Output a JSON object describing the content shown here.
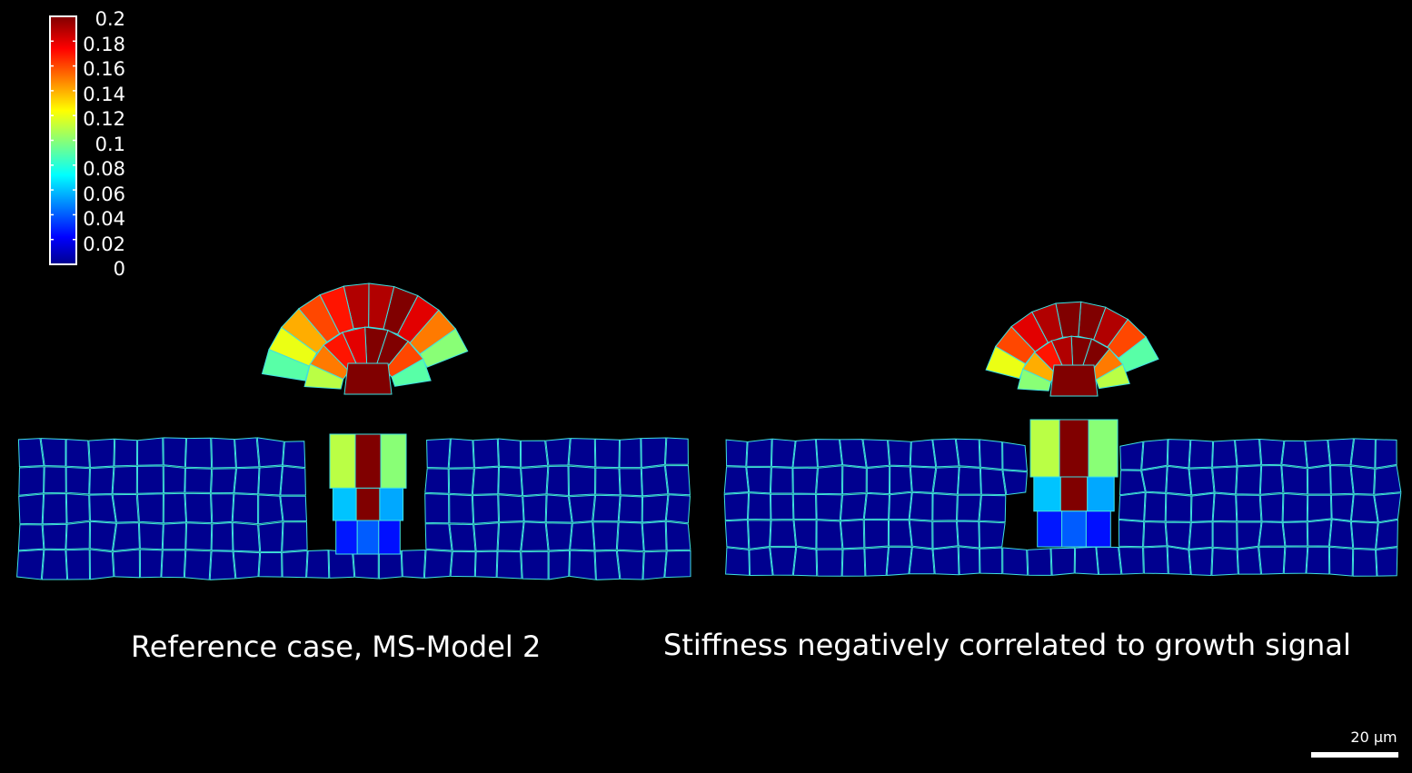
{
  "colorbar": {
    "ticks": [
      "0.2",
      "0.18",
      "0.16",
      "0.14",
      "0.12",
      "0.1",
      "0.08",
      "0.06",
      "0.04",
      "0.02",
      "0"
    ],
    "min": 0,
    "max": 0.2,
    "colormap": "jet"
  },
  "panels": [
    {
      "caption": "Reference case, MS-Model 2"
    },
    {
      "caption": "Stiffness negatively correlated to growth signal"
    }
  ],
  "scale_bar": {
    "label": "20 µm"
  },
  "colors": {
    "background": "#000000",
    "cell_edge": "#3fe0e0",
    "outline": "#ffffff"
  }
}
